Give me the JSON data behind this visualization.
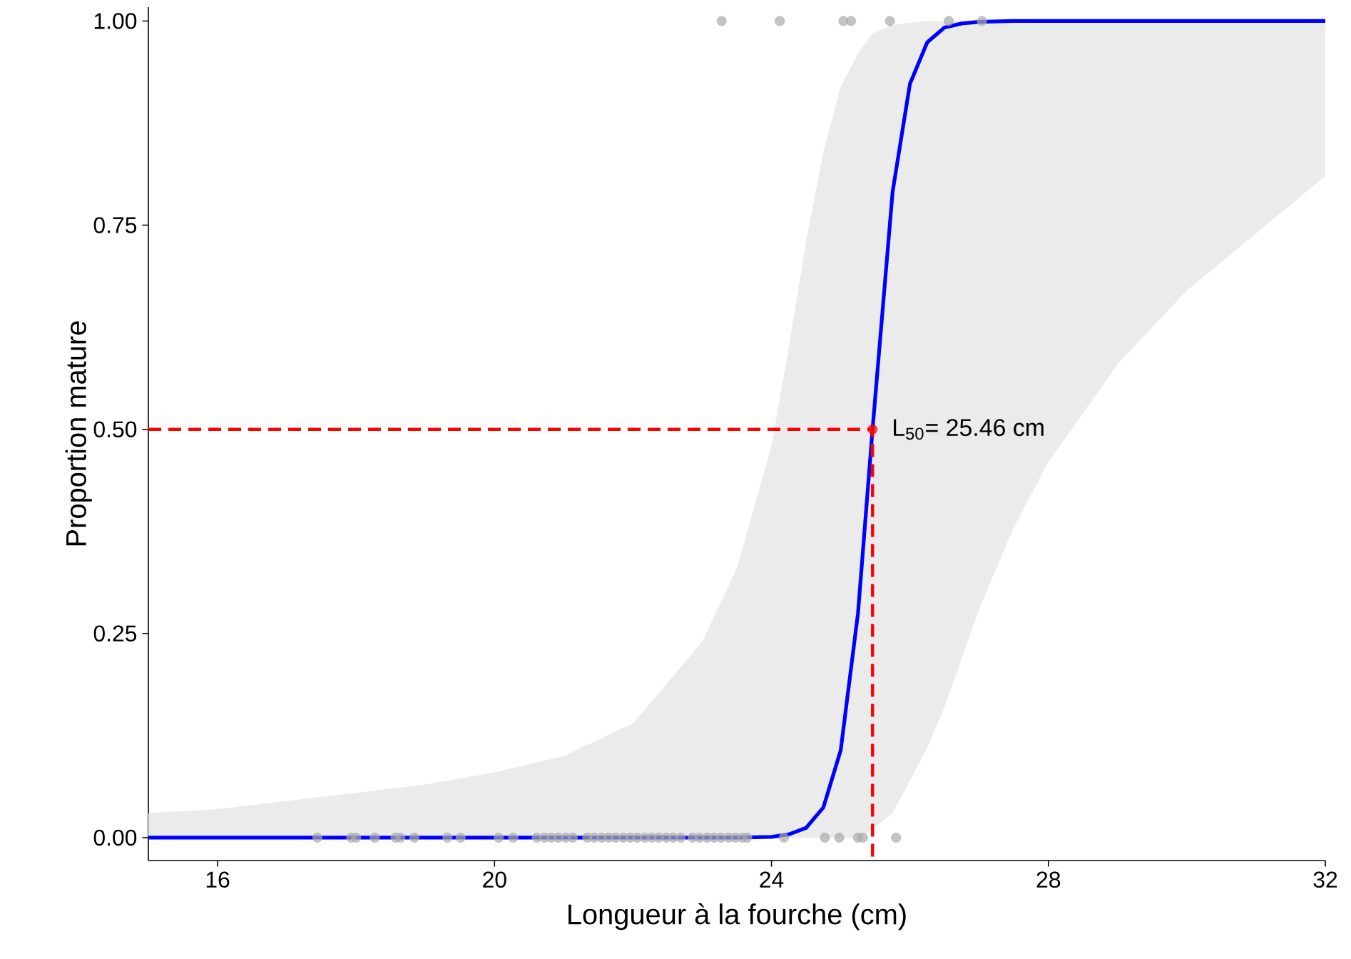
{
  "chart_data": {
    "type": "line",
    "xlabel": "Longueur à la fourche (cm)",
    "ylabel": "Proportion mature",
    "xlim": [
      15,
      32
    ],
    "xticks": [
      16,
      20,
      24,
      28,
      32
    ],
    "ylim": [
      -0.028,
      1.017
    ],
    "yticks": [
      {
        "value": 0,
        "label": "0.00"
      },
      {
        "value": 0.25,
        "label": "0.25"
      },
      {
        "value": 0.5,
        "label": "0.50"
      },
      {
        "value": 0.75,
        "label": "0.75"
      },
      {
        "value": 1,
        "label": "1.00"
      }
    ],
    "grid": false,
    "series": [
      {
        "color": "#0000ff",
        "marker": "none",
        "line_style": "solid",
        "x": [
          15,
          16,
          17,
          18,
          19,
          20,
          21,
          22,
          23,
          23.5,
          24,
          24.25,
          24.5,
          24.75,
          25,
          25.25,
          25.46,
          25.75,
          26,
          26.25,
          26.5,
          26.75,
          27,
          27.5,
          28,
          28.5,
          29,
          30,
          31,
          32
        ],
        "values": [
          0,
          0,
          0,
          0,
          0,
          0,
          0,
          0,
          0,
          0,
          0.001,
          0.004,
          0.012,
          0.037,
          0.107,
          0.275,
          0.5,
          0.791,
          0.923,
          0.974,
          0.992,
          0.997,
          0.999,
          1,
          1,
          1,
          1,
          1,
          1,
          1
        ],
        "lower": [
          0,
          0,
          0,
          0,
          0,
          0,
          0,
          0,
          0,
          0,
          0,
          0,
          0,
          0,
          0,
          0,
          0.01,
          0.03,
          0.07,
          0.11,
          0.16,
          0.22,
          0.28,
          0.38,
          0.46,
          0.52,
          0.58,
          0.67,
          0.74,
          0.81
        ],
        "upper": [
          0.03,
          0.035,
          0.045,
          0.055,
          0.065,
          0.08,
          0.1,
          0.14,
          0.24,
          0.33,
          0.48,
          0.6,
          0.73,
          0.84,
          0.92,
          0.96,
          0.985,
          0.995,
          0.998,
          1,
          1,
          1,
          1,
          1,
          1,
          1,
          1,
          1,
          1,
          1
        ]
      },
      {
        "type": "scatter",
        "color": "#aaaaaa",
        "marker": "circle",
        "x": [
          17.44,
          17.93,
          18.0,
          18.27,
          18.57,
          18.64,
          18.84,
          19.32,
          19.51,
          20.06,
          20.27,
          20.61,
          20.72,
          20.82,
          20.92,
          21.03,
          21.13,
          21.34,
          21.44,
          21.55,
          21.65,
          21.75,
          21.86,
          21.96,
          22.06,
          22.17,
          22.27,
          22.37,
          22.48,
          22.58,
          22.69,
          22.86,
          22.96,
          23.07,
          23.17,
          23.27,
          23.38,
          23.48,
          23.58,
          23.65,
          24.18,
          24.77,
          24.98,
          25.25,
          25.32,
          25.8,
          23.28,
          24.12,
          25.04,
          25.15,
          25.71,
          26.56,
          27.04
        ],
        "values": [
          0,
          0,
          0,
          0,
          0,
          0,
          0,
          0,
          0,
          0,
          0,
          0,
          0,
          0,
          0,
          0,
          0,
          0,
          0,
          0,
          0,
          0,
          0,
          0,
          0,
          0,
          0,
          0,
          0,
          0,
          0,
          0,
          0,
          0,
          0,
          0,
          0,
          0,
          0,
          0,
          0,
          0,
          0,
          0,
          0,
          0,
          1,
          1,
          1,
          1,
          1,
          1,
          1
        ]
      },
      {
        "color": "#ff0000",
        "marker": "none",
        "line_style": "dashed",
        "x": [
          15,
          25.46,
          25.46
        ],
        "values": [
          0.5,
          0.5,
          -0.028
        ]
      },
      {
        "type": "scatter",
        "color": "#ff0000",
        "marker": "circle",
        "x": [
          25.46
        ],
        "values": [
          0.5
        ]
      }
    ],
    "annotations": [
      {
        "text": "L$_{50}$= 25.46 cm",
        "x": 25.46,
        "y": 0.5
      }
    ]
  }
}
